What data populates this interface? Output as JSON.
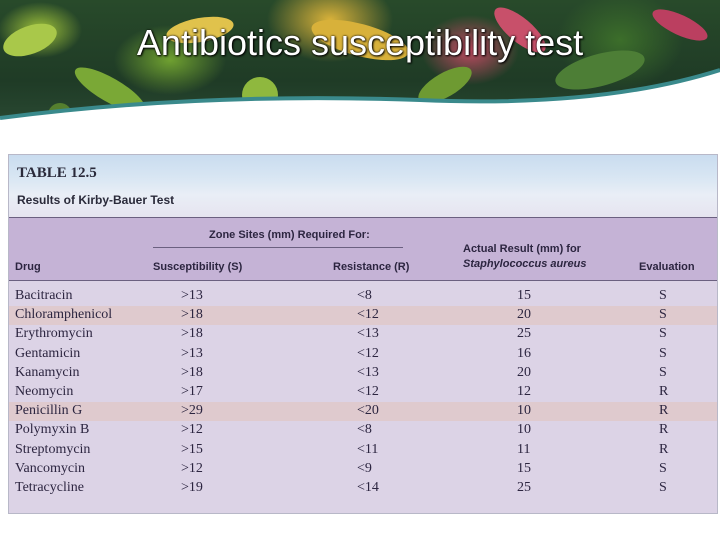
{
  "slide": {
    "title": "Antibiotics susceptibility test"
  },
  "table": {
    "caption": "TABLE 12.5",
    "subtitle": "Results of Kirby-Bauer Test",
    "headers": {
      "zone_group": "Zone Sites (mm) Required For:",
      "drug": "Drug",
      "susceptibility": "Susceptibility (S)",
      "resistance": "Resistance (R)",
      "actual_line1": "Actual Result (mm) for",
      "actual_line2": "Staphylococcus aureus",
      "evaluation": "Evaluation"
    },
    "rows": [
      {
        "drug": "Bacitracin",
        "s": ">13",
        "r": "<8",
        "actual": "15",
        "eval": "S"
      },
      {
        "drug": "Chloramphenicol",
        "s": ">18",
        "r": "<12",
        "actual": "20",
        "eval": "S"
      },
      {
        "drug": "Erythromycin",
        "s": ">18",
        "r": "<13",
        "actual": "25",
        "eval": "S"
      },
      {
        "drug": "Gentamicin",
        "s": ">13",
        "r": "<12",
        "actual": "16",
        "eval": "S"
      },
      {
        "drug": "Kanamycin",
        "s": ">18",
        "r": "<13",
        "actual": "20",
        "eval": "S"
      },
      {
        "drug": "Neomycin",
        "s": ">17",
        "r": "<12",
        "actual": "12",
        "eval": "R"
      },
      {
        "drug": "Penicillin G",
        "s": ">29",
        "r": "<20",
        "actual": "10",
        "eval": "R"
      },
      {
        "drug": "Polymyxin B",
        "s": ">12",
        "r": "<8",
        "actual": "10",
        "eval": "R"
      },
      {
        "drug": "Streptomycin",
        "s": ">15",
        "r": "<11",
        "actual": "11",
        "eval": "R"
      },
      {
        "drug": "Vancomycin",
        "s": ">12",
        "r": "<9",
        "actual": "15",
        "eval": "S"
      },
      {
        "drug": "Tetracycline",
        "s": ">19",
        "r": "<14",
        "actual": "25",
        "eval": "S"
      }
    ]
  }
}
